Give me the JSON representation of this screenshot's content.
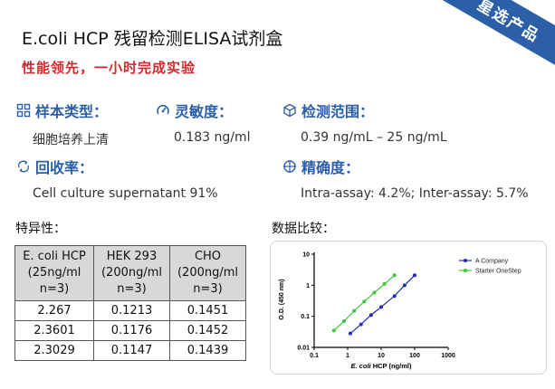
{
  "badge": "星选产品",
  "title": "E.coli HCP 残留检测ELISA试剂盒",
  "subtitle": "性能领先，一小时完成实验",
  "specs": {
    "sample_type": {
      "label": "样本类型：",
      "value": "细胞培养上清",
      "icon": "grid-icon"
    },
    "sensitivity": {
      "label": "灵敏度：",
      "value": "0.183 ng/ml",
      "icon": "speed-gauge-icon"
    },
    "range": {
      "label": "检测范围：",
      "value": "0.39 ng/mL – 25 ng/mL",
      "icon": "cube-icon"
    },
    "recovery": {
      "label": "回收率：",
      "value": "Cell culture supernatant 91%",
      "icon": "recycle-icon"
    },
    "precision": {
      "label": "精确度：",
      "value": "Intra-assay: 4.2%; Inter-assay: 5.7%",
      "icon": "target-icon"
    }
  },
  "specificity_label": "特异性：",
  "table": {
    "headers": [
      [
        "E. coli HCP",
        "(25ng/ml",
        "n=3)"
      ],
      [
        "HEK 293",
        "(200ng/ml",
        "n=3)"
      ],
      [
        "CHO",
        "(200ng/ml",
        "n=3)"
      ]
    ],
    "rows": [
      [
        "2.267",
        "0.1213",
        "0.1451"
      ],
      [
        "2.3601",
        "0.1176",
        "0.1452"
      ],
      [
        "2.3029",
        "0.1147",
        "0.1439"
      ]
    ]
  },
  "comparison_label": "数据比较：",
  "colors": {
    "brand_blue": "#2b5fa8",
    "accent_red": "#d2292e",
    "series_a": "#1f2bbf",
    "series_b": "#3cc63c"
  },
  "chart_data": {
    "type": "line",
    "xlabel_italic": "E. coli",
    "xlabel_rest": " HCP (ng/ml)",
    "ylabel": "O.D. (450 nm)",
    "xscale": "log",
    "yscale": "log",
    "xlim": [
      0.1,
      1000
    ],
    "ylim": [
      0.01,
      10
    ],
    "x_ticks": [
      "0.1",
      "1",
      "10",
      "100",
      "1000"
    ],
    "y_ticks": [
      "10",
      "1",
      "0.1",
      "0.01"
    ],
    "legend_position": "top-right",
    "series": [
      {
        "name": "A Company",
        "color": "#1f2bbf",
        "x": [
          1.2,
          2.5,
          5,
          10,
          25,
          50,
          100
        ],
        "y": [
          0.028,
          0.055,
          0.11,
          0.2,
          0.45,
          1.0,
          2.1
        ]
      },
      {
        "name": "Starter OneStep",
        "color": "#3cc63c",
        "x": [
          0.39,
          0.78,
          1.56,
          3.125,
          6.25,
          12.5,
          25
        ],
        "y": [
          0.035,
          0.07,
          0.15,
          0.3,
          0.58,
          1.1,
          2.1
        ]
      }
    ]
  }
}
